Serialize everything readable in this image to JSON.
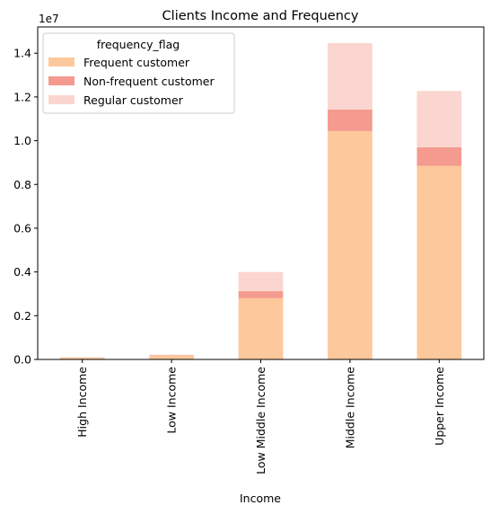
{
  "chart_data": {
    "type": "bar",
    "stacked": true,
    "title": "Clients Income and Frequency",
    "xlabel": "Income",
    "ylabel": "",
    "y_offset_label": "1e7",
    "ylim": [
      0,
      1.52
    ],
    "yticks": [
      0.0,
      0.2,
      0.4,
      0.6,
      0.8,
      1.0,
      1.2,
      1.4
    ],
    "ytick_labels": [
      "0.0",
      "0.2",
      "0.4",
      "0.6",
      "0.8",
      "1.0",
      "1.2",
      "1.4"
    ],
    "categories": [
      "High Income",
      "Low Income",
      "Low Middle Income",
      "Middle Income",
      "Upper Income"
    ],
    "legend_title": "frequency_flag",
    "legend_position": "top-left",
    "grid": false,
    "series": [
      {
        "name": "Frequent customer",
        "color": "#fdc89b",
        "values": [
          0.008,
          0.018,
          0.28,
          1.044,
          0.885
        ]
      },
      {
        "name": "Non-frequent customer",
        "color": "#f59a8f",
        "values": [
          0.001,
          0.002,
          0.032,
          0.098,
          0.085
        ]
      },
      {
        "name": "Regular customer",
        "color": "#fbd5cf",
        "values": [
          0.001,
          0.002,
          0.088,
          0.304,
          0.257
        ]
      }
    ]
  }
}
